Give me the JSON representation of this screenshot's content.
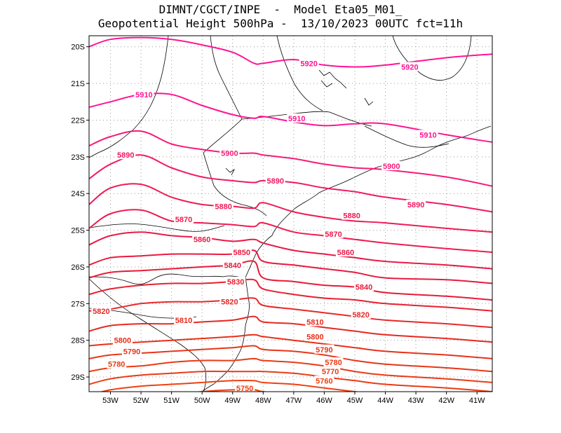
{
  "title": {
    "line1": "DIMNT/CGCT/INPE  -  Model Eta05_M01_",
    "line2": "Geopotential Height 500hPa -  13/10/2023 00UTC fct=11h"
  },
  "axes": {
    "lon_labels": [
      "53W",
      "52W",
      "51W",
      "50W",
      "49W",
      "48W",
      "47W",
      "46W",
      "45W",
      "44W",
      "43W",
      "42W",
      "41W"
    ],
    "lat_labels": [
      "20S",
      "21S",
      "22S",
      "23S",
      "24S",
      "25S",
      "26S",
      "27S",
      "28S",
      "29S"
    ],
    "lon_range": [
      -53.7,
      -40.5
    ],
    "lat_range": [
      -29.4,
      -19.7
    ],
    "grid": "dotted"
  },
  "colors": {
    "high": "#ff1493",
    "mid": "#f01a50",
    "low": "#e8281e",
    "lowest": "#f04010",
    "coast": "#000000"
  },
  "contours": [
    {
      "level": "5920",
      "color": "#ff1493",
      "lats": [
        -20.0,
        -19.8,
        -19.75,
        -19.8,
        -19.95,
        -20.15,
        -20.45,
        -20.45,
        -20.35,
        -20.5,
        -20.55,
        -20.5,
        -20.3,
        -20.2
      ]
    },
    {
      "level": "5910",
      "color": "#ff1493",
      "lats": [
        -21.65,
        -21.5,
        -21.3,
        -21.3,
        -21.6,
        -21.85,
        -21.95,
        -21.9,
        -22.05,
        -22.15,
        -22.1,
        -22.1,
        -22.4,
        -22.6
      ]
    },
    {
      "level": "5900",
      "color": "#f81a78",
      "lats": [
        -22.7,
        -22.45,
        -22.3,
        -22.65,
        -22.8,
        -22.9,
        -22.9,
        -22.95,
        -23.05,
        -23.2,
        -23.3,
        -23.35,
        -23.55,
        -23.8
      ]
    },
    {
      "level": "5890",
      "color": "#f01a60",
      "lats": [
        -23.6,
        -23.2,
        -22.95,
        -23.3,
        -23.55,
        -23.65,
        -23.7,
        -23.65,
        -23.7,
        -23.85,
        -23.95,
        -24.1,
        -24.3,
        -24.5
      ]
    },
    {
      "level": "5880",
      "color": "#f01a55",
      "lats": [
        -24.3,
        -23.85,
        -23.75,
        -24.1,
        -24.3,
        -24.35,
        -24.4,
        -24.25,
        -24.5,
        -24.65,
        -24.75,
        -24.8,
        -24.95,
        -25.05
      ]
    },
    {
      "level": "5870",
      "color": "#f01a50",
      "lats": [
        -24.95,
        -24.55,
        -24.45,
        -24.75,
        -24.8,
        -24.85,
        -24.9,
        -24.8,
        -25.05,
        -25.15,
        -25.25,
        -25.35,
        -25.5,
        -25.6
      ]
    },
    {
      "level": "5860",
      "color": "#e81a48",
      "lats": [
        -25.4,
        -25.15,
        -25.05,
        -25.15,
        -25.2,
        -25.3,
        -25.25,
        -25.35,
        -25.55,
        -25.65,
        -25.75,
        -25.85,
        -25.95,
        -26.05
      ]
    },
    {
      "level": "5850",
      "color": "#e81a40",
      "lats": [
        -25.95,
        -25.75,
        -25.7,
        -25.65,
        -25.65,
        -25.65,
        -25.55,
        -25.85,
        -25.95,
        -26.05,
        -26.15,
        -26.3,
        -26.35,
        -26.45
      ]
    },
    {
      "level": "5840",
      "color": "#e81a38",
      "lats": [
        -26.3,
        -26.15,
        -26.1,
        -26.05,
        -26.0,
        -25.95,
        -25.85,
        -26.3,
        -26.4,
        -26.5,
        -26.55,
        -26.7,
        -26.8,
        -26.9
      ]
    },
    {
      "level": "5830",
      "color": "#e82030",
      "lats": [
        -26.75,
        -26.6,
        -26.5,
        -26.45,
        -26.45,
        -26.4,
        -26.35,
        -26.6,
        -26.75,
        -26.85,
        -26.9,
        -27.0,
        -27.1,
        -27.2
      ]
    },
    {
      "level": "5820",
      "color": "#e82828",
      "lats": [
        -27.2,
        -27.15,
        -27.0,
        -26.95,
        -26.95,
        -26.9,
        -26.85,
        -27.05,
        -27.15,
        -27.25,
        -27.35,
        -27.45,
        -27.55,
        -27.65
      ]
    },
    {
      "level": "5810",
      "color": "#e82820",
      "lats": [
        -27.75,
        -27.6,
        -27.55,
        -27.55,
        -27.5,
        -27.45,
        -27.35,
        -27.5,
        -27.55,
        -27.65,
        -27.75,
        -27.85,
        -27.95,
        -28.05
      ]
    },
    {
      "level": "5800",
      "color": "#e83018",
      "lats": [
        -28.15,
        -28.1,
        -28.05,
        -28.0,
        -27.95,
        -27.9,
        -27.85,
        -27.9,
        -28.0,
        -28.1,
        -28.2,
        -28.3,
        -28.4,
        -28.5
      ]
    },
    {
      "level": "5790",
      "color": "#e83518",
      "lats": [
        -28.5,
        -28.4,
        -28.35,
        -28.3,
        -28.25,
        -28.2,
        -28.15,
        -28.25,
        -28.3,
        -28.4,
        -28.55,
        -28.65,
        -28.75,
        -28.85
      ]
    },
    {
      "level": "5780",
      "color": "#ec3a14",
      "lats": [
        -28.85,
        -28.75,
        -28.7,
        -28.6,
        -28.55,
        -28.55,
        -28.5,
        -28.55,
        -28.6,
        -28.7,
        -28.85,
        -28.95,
        -29.05,
        -29.15
      ]
    },
    {
      "level": "5770",
      "color": "#ec3a14",
      "lats": [
        -29.2,
        -29.05,
        -28.95,
        -28.9,
        -28.85,
        -28.85,
        -28.85,
        -28.85,
        -28.9,
        -29.0,
        -29.1,
        -29.2,
        -29.3,
        -29.4
      ]
    },
    {
      "level": "5760",
      "color": "#f04010",
      "lats": [
        -29.5,
        -29.35,
        -29.25,
        -29.2,
        -29.15,
        -29.1,
        -29.1,
        -29.15,
        -29.2,
        -29.3,
        -29.4,
        -29.5,
        -29.6,
        -29.7
      ]
    },
    {
      "level": "5750",
      "color": "#f04010",
      "lats": [
        -29.8,
        -29.7,
        -29.6,
        -29.5,
        -29.4,
        -29.35,
        -29.35,
        -29.4,
        -29.5,
        -29.6,
        -29.7,
        -29.8,
        -29.9,
        -30.0
      ]
    }
  ],
  "contour_lons": [
    -53.7,
    -53.0,
    -52.0,
    -51.0,
    -50.0,
    -49.0,
    -48.3,
    -48.0,
    -47.0,
    -46.0,
    -45.0,
    -44.0,
    -42.0,
    -40.5
  ],
  "labels": [
    {
      "text": "5920",
      "lon": -46.5,
      "lat": -20.45
    },
    {
      "text": "5920",
      "lon": -43.2,
      "lat": -20.55
    },
    {
      "text": "5910",
      "lon": -51.9,
      "lat": -21.3
    },
    {
      "text": "5910",
      "lon": -46.9,
      "lat": -21.95
    },
    {
      "text": "5910",
      "lon": -42.6,
      "lat": -22.4
    },
    {
      "text": "5900",
      "lon": -49.1,
      "lat": -22.9
    },
    {
      "text": "5900",
      "lon": -43.8,
      "lat": -23.25
    },
    {
      "text": "5890",
      "lon": -52.5,
      "lat": -22.95
    },
    {
      "text": "5890",
      "lon": -47.6,
      "lat": -23.65
    },
    {
      "text": "5890",
      "lon": -43.0,
      "lat": -24.3
    },
    {
      "text": "5880",
      "lon": -49.3,
      "lat": -24.35
    },
    {
      "text": "5880",
      "lon": -45.1,
      "lat": -24.6
    },
    {
      "text": "5870",
      "lon": -50.6,
      "lat": -24.7
    },
    {
      "text": "5870",
      "lon": -45.7,
      "lat": -25.1
    },
    {
      "text": "5860",
      "lon": -50.0,
      "lat": -25.25
    },
    {
      "text": "5860",
      "lon": -45.3,
      "lat": -25.6
    },
    {
      "text": "5850",
      "lon": -48.7,
      "lat": -25.6
    },
    {
      "text": "5840",
      "lon": -49.0,
      "lat": -25.95
    },
    {
      "text": "5840",
      "lon": -44.7,
      "lat": -26.55
    },
    {
      "text": "5830",
      "lon": -48.9,
      "lat": -26.4
    },
    {
      "text": "5820",
      "lon": -53.3,
      "lat": -27.2
    },
    {
      "text": "5820",
      "lon": -49.1,
      "lat": -26.95
    },
    {
      "text": "5820",
      "lon": -44.8,
      "lat": -27.3
    },
    {
      "text": "5810",
      "lon": -50.6,
      "lat": -27.45
    },
    {
      "text": "5810",
      "lon": -46.3,
      "lat": -27.5
    },
    {
      "text": "5800",
      "lon": -52.6,
      "lat": -28.0
    },
    {
      "text": "5800",
      "lon": -46.3,
      "lat": -27.9
    },
    {
      "text": "5790",
      "lon": -52.3,
      "lat": -28.3
    },
    {
      "text": "5790",
      "lon": -46.0,
      "lat": -28.25
    },
    {
      "text": "5780",
      "lon": -52.8,
      "lat": -28.65
    },
    {
      "text": "5780",
      "lon": -45.7,
      "lat": -28.6
    },
    {
      "text": "5770",
      "lon": -45.8,
      "lat": -28.85
    },
    {
      "text": "5760",
      "lon": -46.0,
      "lat": -29.1
    },
    {
      "text": "5750",
      "lon": -48.6,
      "lat": -29.3
    }
  ]
}
